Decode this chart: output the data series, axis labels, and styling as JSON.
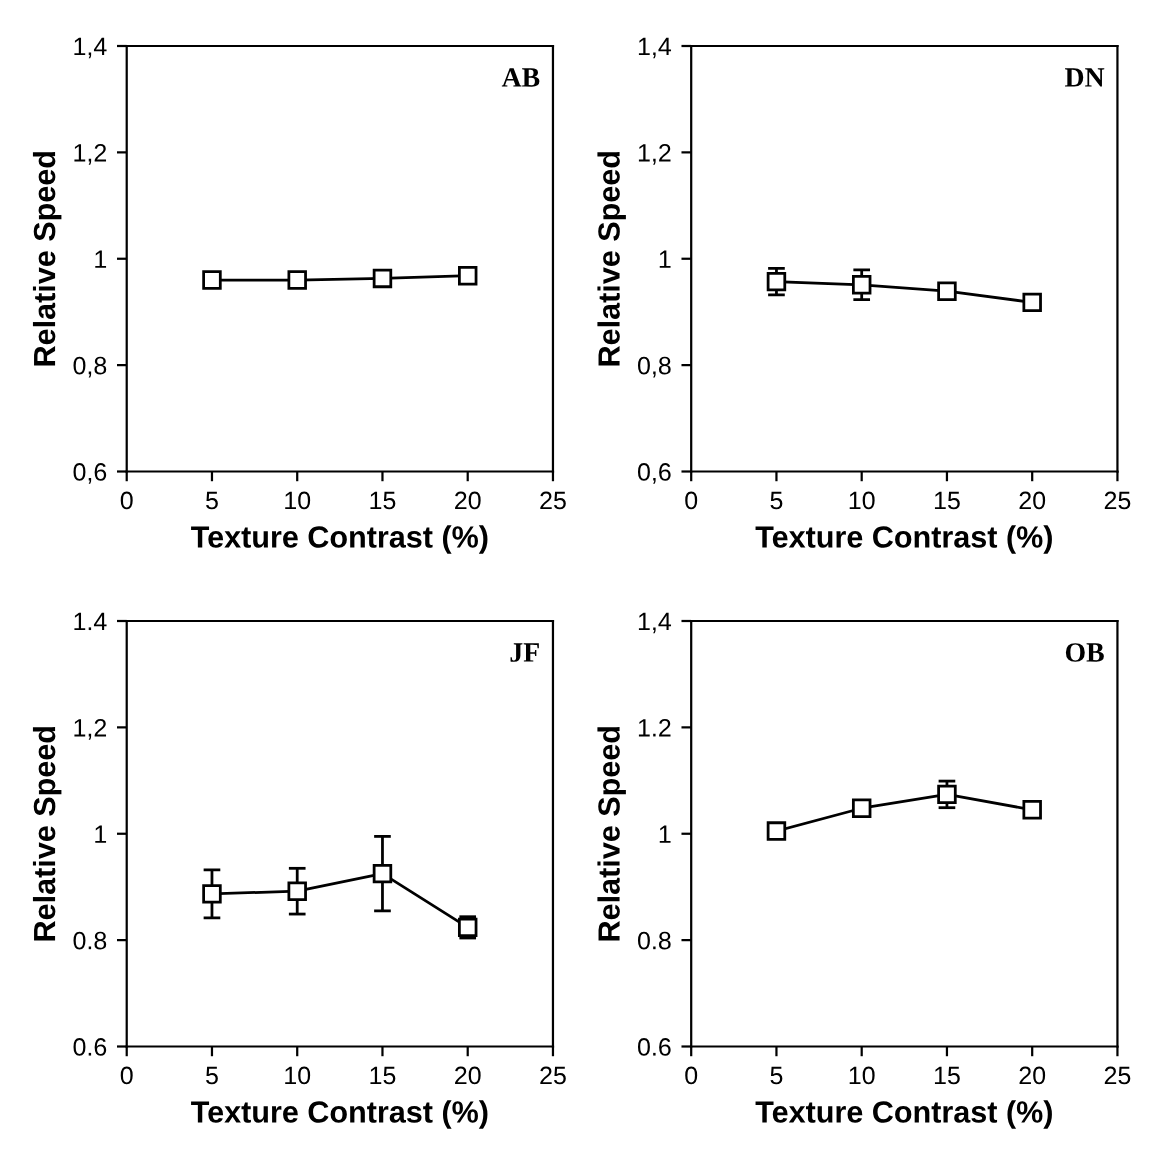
{
  "chart_data": [
    {
      "type": "line",
      "xlabel": "Texture Contrast (%)",
      "ylabel": "Relative Speed",
      "annotations": [
        "AB"
      ],
      "marker": "square",
      "line_style": "solid",
      "grid": false,
      "xlim": [
        0,
        25
      ],
      "xticks": [
        0,
        5,
        10,
        15,
        20,
        25
      ],
      "ylim": [
        0.6,
        1.4
      ],
      "yticks": [
        {
          "value": 0.6,
          "label": "0,6"
        },
        {
          "value": 0.8,
          "label": "0,8"
        },
        1,
        {
          "value": 1.2,
          "label": "1,2"
        },
        {
          "value": 1.4,
          "label": "1,4"
        }
      ],
      "series": [
        {
          "color": "#000000",
          "x": [
            5,
            10,
            15,
            20
          ],
          "values": [
            0.96,
            0.96,
            0.963,
            0.968
          ]
        }
      ]
    },
    {
      "type": "line",
      "xlabel": "Texture Contrast (%)",
      "ylabel": "Relative Speed",
      "annotations": [
        "DN"
      ],
      "marker": "square",
      "line_style": "solid",
      "grid": false,
      "xlim": [
        0,
        25
      ],
      "xticks": [
        0,
        5,
        10,
        15,
        20,
        25
      ],
      "ylim": [
        0.6,
        1.4
      ],
      "yticks": [
        {
          "value": 0.6,
          "label": "0,6"
        },
        {
          "value": 0.8,
          "label": "0,8"
        },
        1,
        {
          "value": 1.2,
          "label": "1,2"
        },
        {
          "value": 1.4,
          "label": "1,4"
        }
      ],
      "series": [
        {
          "color": "#000000",
          "x": [
            5,
            10,
            15,
            20
          ],
          "values": [
            0.957,
            0.951,
            0.939,
            0.918
          ],
          "errors": [
            0.025,
            0.028,
            null,
            null
          ]
        }
      ]
    },
    {
      "type": "line",
      "xlabel": "Texture Contrast (%)",
      "ylabel": "Relative Speed",
      "annotations": [
        "JF"
      ],
      "marker": "square",
      "line_style": "solid",
      "grid": false,
      "xlim": [
        0,
        25
      ],
      "xticks": [
        0,
        5,
        10,
        15,
        20,
        25
      ],
      "ylim": [
        0.6,
        1.4
      ],
      "yticks": [
        0.6,
        0.8,
        1,
        {
          "value": 1.2,
          "label": "1,2"
        },
        1.4
      ],
      "series": [
        {
          "color": "#000000",
          "x": [
            5,
            10,
            15,
            20
          ],
          "values": [
            0.887,
            0.892,
            0.925,
            0.824
          ],
          "errors": [
            0.045,
            0.043,
            0.07,
            0.02
          ]
        }
      ]
    },
    {
      "type": "line",
      "xlabel": "Texture Contrast (%)",
      "ylabel": "Relative Speed",
      "annotations": [
        "OB"
      ],
      "marker": "square",
      "line_style": "solid",
      "grid": false,
      "xlim": [
        0,
        25
      ],
      "xticks": [
        0,
        5,
        10,
        15,
        20,
        25
      ],
      "ylim": [
        0.6,
        1.4
      ],
      "yticks": [
        0.6,
        0.8,
        1,
        1.2,
        {
          "value": 1.4,
          "label": "1,4"
        }
      ],
      "series": [
        {
          "color": "#000000",
          "x": [
            5,
            10,
            15,
            20
          ],
          "values": [
            1.005,
            1.048,
            1.074,
            1.045
          ],
          "errors": [
            null,
            null,
            0.025,
            null
          ]
        }
      ]
    }
  ]
}
